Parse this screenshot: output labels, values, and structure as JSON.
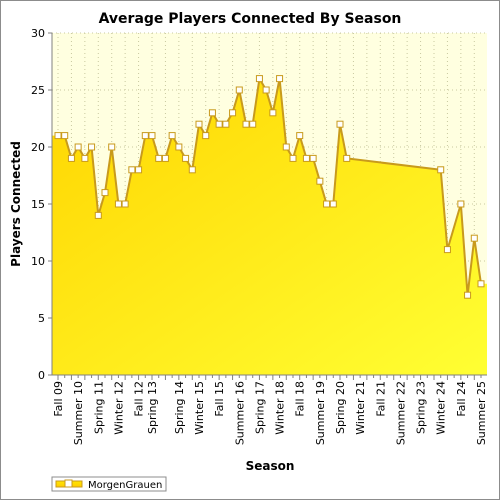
{
  "chart_data": {
    "type": "area",
    "title": "Average Players Connected By Season",
    "xlabel": "Season",
    "ylabel": "Players Connected",
    "ylim": [
      0,
      30
    ],
    "yticks": [
      0,
      5,
      10,
      15,
      20,
      25,
      30
    ],
    "grid": true,
    "legend_position": "bottom-left",
    "x_tick_labels": [
      "Fall 09",
      "Summer 10",
      "Spring 11",
      "Winter 12",
      "Fall 12",
      "Spring 13",
      "Spring 14",
      "Winter 15",
      "Fall 15",
      "Summer 16",
      "Spring 17",
      "Winter 18",
      "Fall 18",
      "Summer 19",
      "Spring 20",
      "Winter 21",
      "Fall 21",
      "Summer 22",
      "Spring 23",
      "Winter 24",
      "Fall 24",
      "Summer 25"
    ],
    "colors": {
      "fill_top": "#ffd500",
      "fill_bottom": "#ffff33",
      "line": "#c89a1c",
      "plot_bg": "#ffffe0",
      "grid": "#c8c8a0"
    },
    "series": [
      {
        "name": "MorgenGrauen",
        "points": [
          [
            "Fall 09",
            21
          ],
          [
            "Winter 10",
            21
          ],
          [
            "Spring 10",
            19
          ],
          [
            "Summer 10",
            20
          ],
          [
            "Fall 10",
            19
          ],
          [
            "Winter 11",
            20
          ],
          [
            "Spring 11",
            14
          ],
          [
            "Summer 11",
            16
          ],
          [
            "Fall 11",
            20
          ],
          [
            "Winter 12",
            15
          ],
          [
            "Spring 12",
            15
          ],
          [
            "Summer 12",
            18
          ],
          [
            "Fall 12",
            18
          ],
          [
            "Winter 13",
            21
          ],
          [
            "Spring 13",
            21
          ],
          [
            "Summer 13",
            19
          ],
          [
            "Fall 13",
            19
          ],
          [
            "Winter 14",
            21
          ],
          [
            "Spring 14",
            20
          ],
          [
            "Summer 14",
            19
          ],
          [
            "Fall 14",
            18
          ],
          [
            "Winter 15",
            22
          ],
          [
            "Spring 15",
            21
          ],
          [
            "Summer 15",
            23
          ],
          [
            "Fall 15",
            22
          ],
          [
            "Winter 16",
            22
          ],
          [
            "Spring 16",
            23
          ],
          [
            "Summer 16",
            25
          ],
          [
            "Fall 16",
            22
          ],
          [
            "Winter 17",
            22
          ],
          [
            "Spring 17",
            26
          ],
          [
            "Summer 17",
            25
          ],
          [
            "Fall 17",
            23
          ],
          [
            "Winter 18",
            26
          ],
          [
            "Spring 18",
            20
          ],
          [
            "Summer 18",
            19
          ],
          [
            "Fall 18",
            21
          ],
          [
            "Winter 19",
            19
          ],
          [
            "Spring 19",
            19
          ],
          [
            "Summer 19",
            17
          ],
          [
            "Fall 19",
            15
          ],
          [
            "Winter 20",
            15
          ],
          [
            "Spring 20",
            22
          ],
          [
            "Summer 20",
            19
          ],
          [
            "Winter 24",
            18
          ],
          [
            "Spring 24",
            11
          ],
          [
            "Fall 24",
            15
          ],
          [
            "Winter 25",
            7
          ],
          [
            "Spring 25",
            12
          ],
          [
            "Summer 25",
            8
          ]
        ]
      }
    ]
  }
}
